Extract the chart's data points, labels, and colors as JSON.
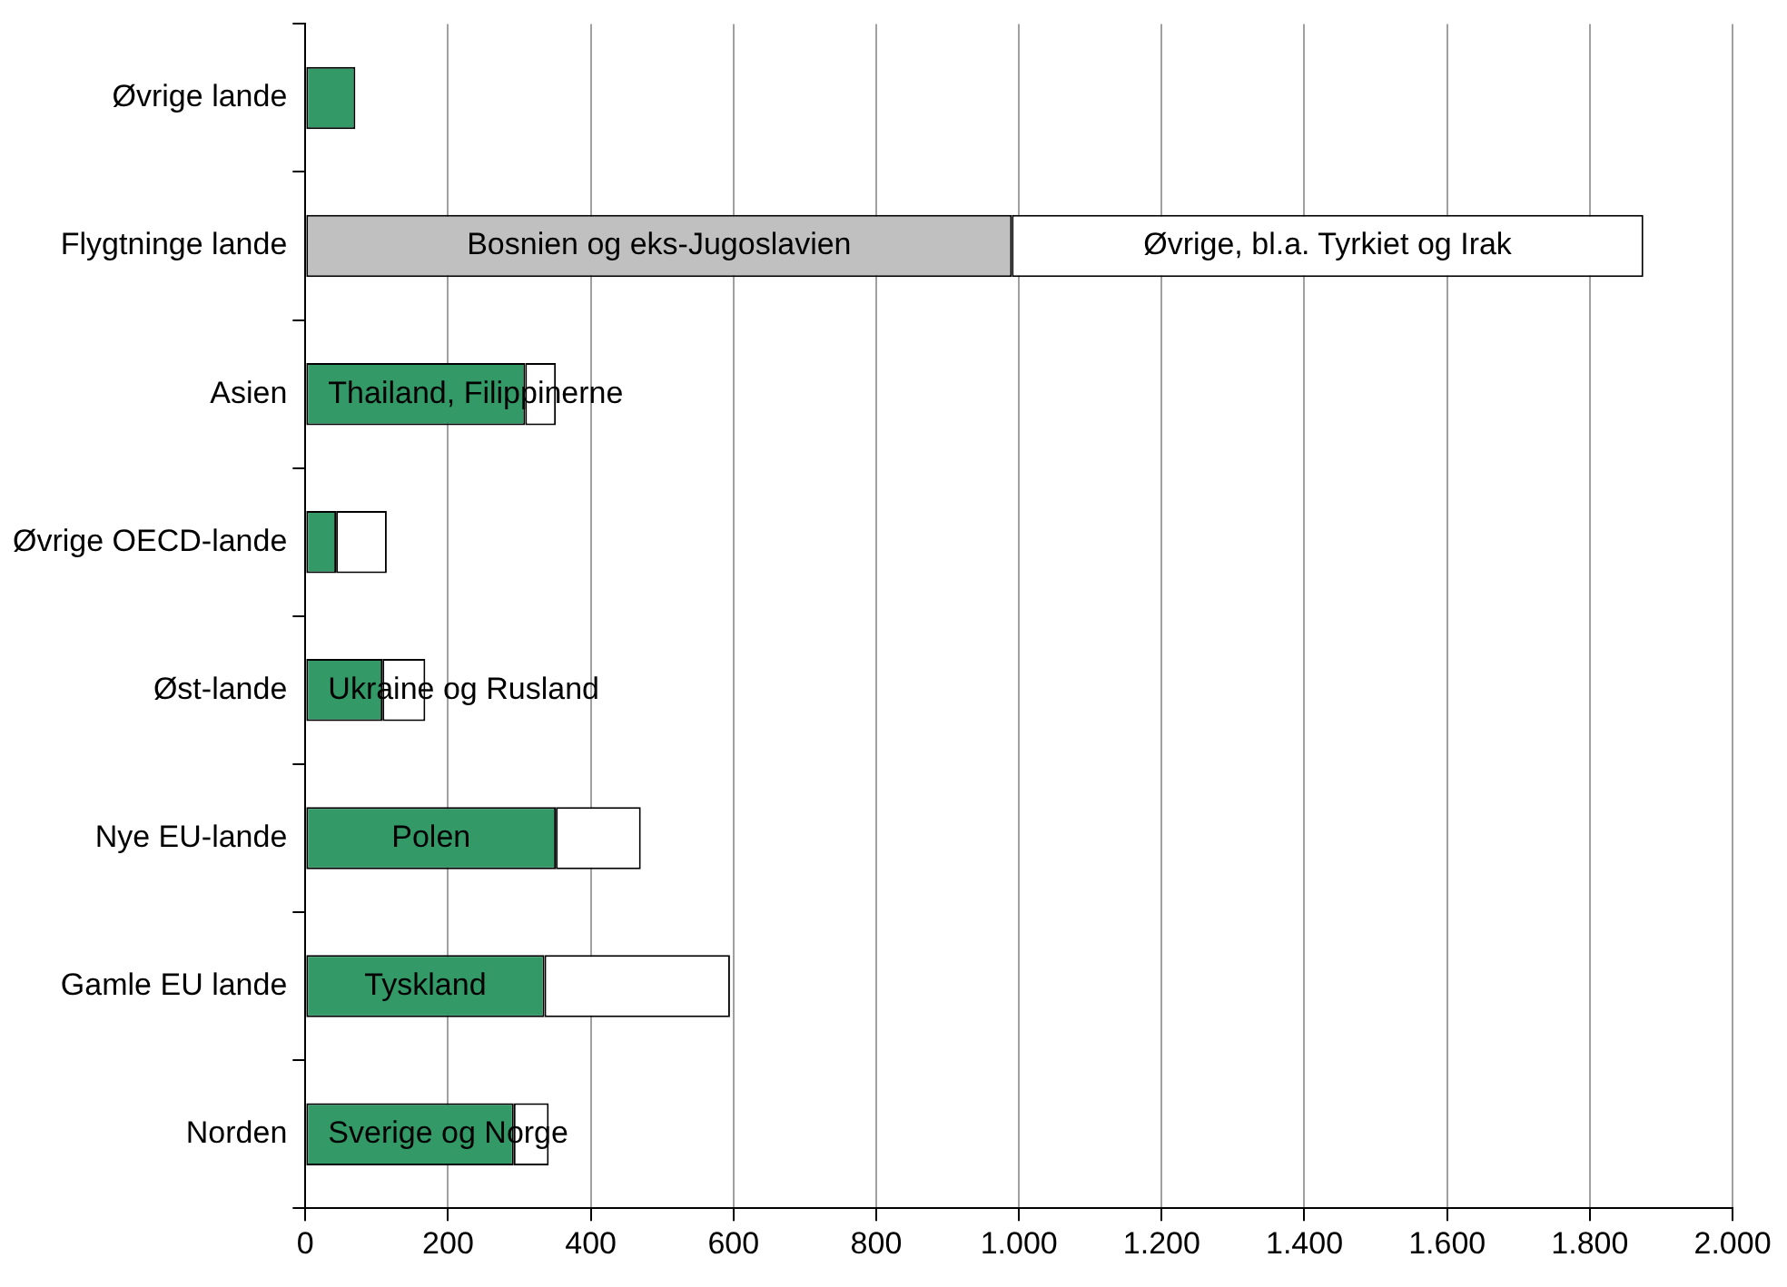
{
  "chart_data": {
    "type": "bar",
    "orientation": "horizontal",
    "stacked": true,
    "grid": "x",
    "legend": false,
    "categories": [
      "Øvrige lande",
      "Flygtninge lande",
      "Asien",
      "Øvrige OECD-lande",
      "Øst-lande",
      "Nye EU-lande",
      "Gamle EU lande",
      "Norden"
    ],
    "series": [
      {
        "colors": [
          "#339966",
          "#c0c0c0",
          "#339966",
          "#339966",
          "#339966",
          "#339966",
          "#339966",
          "#339966"
        ],
        "values": [
          70,
          990,
          308,
          43,
          108,
          351,
          335,
          292
        ],
        "value_labels": [
          null,
          "Bosnien og eks-Jugoslavien",
          "Thailand, Filippinerne",
          null,
          "Ukraine og Rusland",
          "Polen",
          "Tyskland",
          "Sverige og Norge"
        ]
      },
      {
        "color": "#ffffff",
        "values": [
          null,
          885,
          43,
          71,
          60,
          119,
          260,
          49
        ],
        "value_labels": [
          null,
          "Øvrige, bl.a. Tyrkiet og Irak",
          null,
          null,
          null,
          null,
          null,
          null
        ]
      }
    ],
    "xlim": [
      0,
      2000
    ],
    "xticks": [
      0,
      200,
      400,
      600,
      800,
      {
        "value": 1000,
        "label": "1.000"
      },
      {
        "value": 1200,
        "label": "1.200"
      },
      {
        "value": 1400,
        "label": "1.400"
      },
      {
        "value": 1600,
        "label": "1.600"
      },
      {
        "value": 1800,
        "label": "1.800"
      },
      {
        "value": 2000,
        "label": "2.000"
      }
    ],
    "xlabel": null
  }
}
